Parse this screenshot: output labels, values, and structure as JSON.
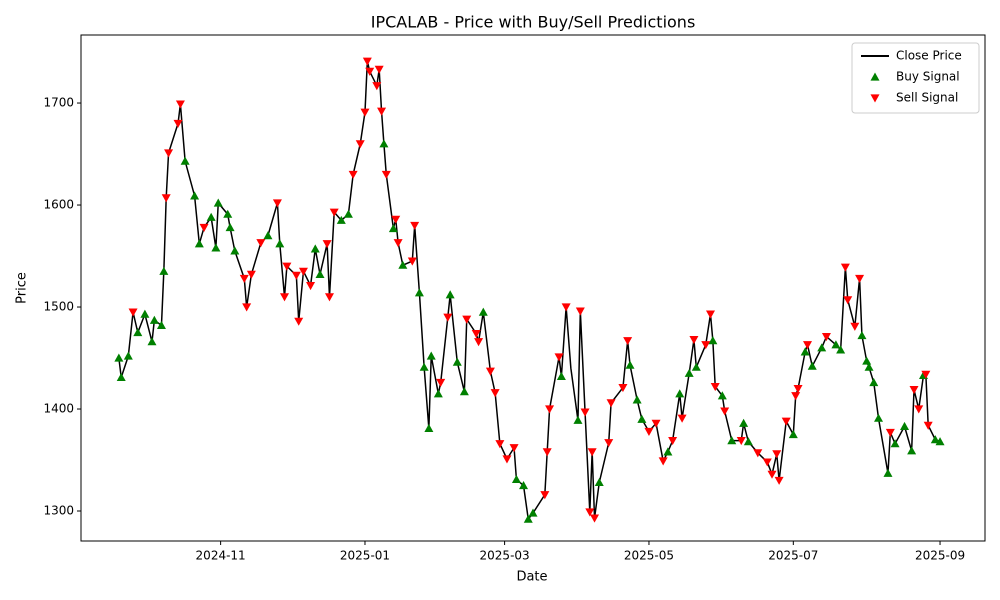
{
  "chart_data": {
    "type": "line",
    "title": "IPCALAB - Price with Buy/Sell Predictions",
    "x_label": "Date",
    "y_label": "Price",
    "xlim": [
      "2024-09-03",
      "2025-09-20"
    ],
    "xticks": [
      {
        "value": "2024-11-01",
        "label": "2024-11"
      },
      {
        "value": "2025-01-01",
        "label": "2025-01"
      },
      {
        "value": "2025-03-01",
        "label": "2025-03"
      },
      {
        "value": "2025-05-01",
        "label": "2025-05"
      },
      {
        "value": "2025-07-01",
        "label": "2025-07"
      },
      {
        "value": "2025-09-01",
        "label": "2025-09"
      }
    ],
    "ylim": [
      1270.6,
      1766.7
    ],
    "yticks": [
      1300,
      1400,
      1500,
      1600,
      1700
    ],
    "legend": "upper right",
    "x": [
      "2024-09-19",
      "2024-09-20",
      "2024-09-23",
      "2024-09-25",
      "2024-09-27",
      "2024-09-30",
      "2024-10-03",
      "2024-10-04",
      "2024-10-07",
      "2024-10-08",
      "2024-10-09",
      "2024-10-10",
      "2024-10-14",
      "2024-10-15",
      "2024-10-17",
      "2024-10-21",
      "2024-10-23",
      "2024-10-25",
      "2024-10-28",
      "2024-10-30",
      "2024-10-31",
      "2024-11-04",
      "2024-11-05",
      "2024-11-07",
      "2024-11-11",
      "2024-11-12",
      "2024-11-14",
      "2024-11-18",
      "2024-11-21",
      "2024-11-25",
      "2024-11-26",
      "2024-11-28",
      "2024-11-29",
      "2024-12-03",
      "2024-12-04",
      "2024-12-06",
      "2024-12-09",
      "2024-12-11",
      "2024-12-13",
      "2024-12-16",
      "2024-12-17",
      "2024-12-19",
      "2024-12-22",
      "2024-12-25",
      "2024-12-27",
      "2024-12-30",
      "2025-01-01",
      "2025-01-02",
      "2025-01-03",
      "2025-01-06",
      "2025-01-07",
      "2025-01-08",
      "2025-01-09",
      "2025-01-10",
      "2025-01-13",
      "2025-01-14",
      "2025-01-15",
      "2025-01-17",
      "2025-01-21",
      "2025-01-22",
      "2025-01-24",
      "2025-01-26",
      "2025-01-28",
      "2025-01-29",
      "2025-02-01",
      "2025-02-02",
      "2025-02-05",
      "2025-02-06",
      "2025-02-09",
      "2025-02-12",
      "2025-02-13",
      "2025-02-17",
      "2025-02-18",
      "2025-02-20",
      "2025-02-23",
      "2025-02-25",
      "2025-02-27",
      "2025-03-02",
      "2025-03-05",
      "2025-03-06",
      "2025-03-09",
      "2025-03-11",
      "2025-03-13",
      "2025-03-18",
      "2025-03-19",
      "2025-03-20",
      "2025-03-24",
      "2025-03-25",
      "2025-03-27",
      "2025-03-29",
      "2025-04-01",
      "2025-04-02",
      "2025-04-04",
      "2025-04-06",
      "2025-04-07",
      "2025-04-08",
      "2025-04-10",
      "2025-04-14",
      "2025-04-15",
      "2025-04-20",
      "2025-04-22",
      "2025-04-23",
      "2025-04-26",
      "2025-04-28",
      "2025-05-01",
      "2025-05-04",
      "2025-05-07",
      "2025-05-09",
      "2025-05-11",
      "2025-05-14",
      "2025-05-15",
      "2025-05-18",
      "2025-05-20",
      "2025-05-21",
      "2025-05-25",
      "2025-05-27",
      "2025-05-28",
      "2025-05-29",
      "2025-06-01",
      "2025-06-02",
      "2025-06-05",
      "2025-06-09",
      "2025-06-10",
      "2025-06-12",
      "2025-06-16",
      "2025-06-20",
      "2025-06-22",
      "2025-06-24",
      "2025-06-25",
      "2025-06-28",
      "2025-07-01",
      "2025-07-02",
      "2025-07-03",
      "2025-07-06",
      "2025-07-07",
      "2025-07-09",
      "2025-07-13",
      "2025-07-15",
      "2025-07-19",
      "2025-07-21",
      "2025-07-23",
      "2025-07-24",
      "2025-07-27",
      "2025-07-29",
      "2025-07-30",
      "2025-08-01",
      "2025-08-02",
      "2025-08-04",
      "2025-08-06",
      "2025-08-10",
      "2025-08-11",
      "2025-08-13",
      "2025-08-17",
      "2025-08-20",
      "2025-08-21",
      "2025-08-23",
      "2025-08-25",
      "2025-08-26",
      "2025-08-27",
      "2025-08-30",
      "2025-09-01"
    ],
    "series": [
      {
        "name": "Close Price",
        "type": "line",
        "color": "#000000",
        "values": [
          1450,
          1431,
          1452,
          1495,
          1475,
          1493,
          1466,
          1487,
          1482,
          1535,
          1607,
          1651,
          1680,
          1699,
          1643,
          1609,
          1562,
          1578,
          1588,
          1558,
          1602,
          1591,
          1578,
          1555,
          1528,
          1500,
          1532,
          1563,
          1570,
          1602,
          1562,
          1510,
          1540,
          1531,
          1486,
          1535,
          1521,
          1557,
          1532,
          1562,
          1510,
          1593,
          1585,
          1591,
          1630,
          1660,
          1691,
          1741,
          1731,
          1717,
          1733,
          1692,
          1660,
          1630,
          1577,
          1586,
          1563,
          1541,
          1545,
          1580,
          1514,
          1441,
          1381,
          1452,
          1415,
          1426,
          1490,
          1512,
          1446,
          1417,
          1488,
          1474,
          1466,
          1495,
          1437,
          1416,
          1366,
          1351,
          1362,
          1331,
          1325,
          1292,
          1298,
          1316,
          1358,
          1400,
          1451,
          1432,
          1500,
          1440,
          1389,
          1496,
          1397,
          1299,
          1358,
          1293,
          1328,
          1367,
          1406,
          1421,
          1467,
          1443,
          1409,
          1390,
          1378,
          1386,
          1349,
          1358,
          1369,
          1415,
          1391,
          1435,
          1468,
          1441,
          1463,
          1493,
          1467,
          1422,
          1413,
          1398,
          1369,
          1369,
          1386,
          1368,
          1357,
          1348,
          1336,
          1356,
          1330,
          1388,
          1375,
          1413,
          1420,
          1456,
          1463,
          1442,
          1460,
          1471,
          1463,
          1458,
          1539,
          1507,
          1481,
          1528,
          1472,
          1447,
          1441,
          1426,
          1391,
          1337,
          1377,
          1366,
          1383,
          1359,
          1419,
          1400,
          1433,
          1434,
          1384,
          1370,
          1368
        ]
      },
      {
        "name": "Buy Signal",
        "type": "scatter",
        "marker": "triangle-up",
        "color": "#008000",
        "x": [
          "2024-09-19",
          "2024-09-20",
          "2024-09-23",
          "2024-09-27",
          "2024-09-30",
          "2024-10-03",
          "2024-10-04",
          "2024-10-07",
          "2024-10-08",
          "2024-10-17",
          "2024-10-21",
          "2024-10-23",
          "2024-10-28",
          "2024-10-30",
          "2024-10-31",
          "2024-11-04",
          "2024-11-05",
          "2024-11-07",
          "2024-11-21",
          "2024-11-26",
          "2024-12-11",
          "2024-12-13",
          "2024-12-22",
          "2024-12-25",
          "2025-01-09",
          "2025-01-13",
          "2025-01-17",
          "2025-01-24",
          "2025-01-26",
          "2025-01-28",
          "2025-01-29",
          "2025-02-01",
          "2025-02-06",
          "2025-02-09",
          "2025-02-12",
          "2025-02-20",
          "2025-03-06",
          "2025-03-09",
          "2025-03-11",
          "2025-03-13",
          "2025-03-25",
          "2025-04-01",
          "2025-04-10",
          "2025-04-23",
          "2025-04-26",
          "2025-04-28",
          "2025-05-09",
          "2025-05-14",
          "2025-05-18",
          "2025-05-21",
          "2025-05-28",
          "2025-06-01",
          "2025-06-05",
          "2025-06-10",
          "2025-06-12",
          "2025-07-01",
          "2025-07-06",
          "2025-07-09",
          "2025-07-13",
          "2025-07-19",
          "2025-07-21",
          "2025-07-30",
          "2025-08-01",
          "2025-08-02",
          "2025-08-04",
          "2025-08-06",
          "2025-08-10",
          "2025-08-13",
          "2025-08-17",
          "2025-08-20",
          "2025-08-25",
          "2025-08-30",
          "2025-09-01"
        ],
        "values": [
          1450,
          1431,
          1452,
          1475,
          1493,
          1466,
          1487,
          1482,
          1535,
          1643,
          1609,
          1562,
          1588,
          1558,
          1602,
          1591,
          1578,
          1555,
          1570,
          1562,
          1557,
          1532,
          1585,
          1591,
          1660,
          1577,
          1541,
          1514,
          1441,
          1381,
          1452,
          1415,
          1512,
          1446,
          1417,
          1495,
          1331,
          1325,
          1292,
          1298,
          1432,
          1389,
          1328,
          1443,
          1409,
          1390,
          1358,
          1415,
          1435,
          1441,
          1467,
          1413,
          1369,
          1386,
          1368,
          1375,
          1456,
          1442,
          1460,
          1463,
          1458,
          1472,
          1447,
          1441,
          1426,
          1391,
          1337,
          1366,
          1383,
          1359,
          1433,
          1370,
          1368
        ]
      },
      {
        "name": "Sell Signal",
        "type": "scatter",
        "marker": "triangle-down",
        "color": "#ff0000",
        "x": [
          "2024-09-25",
          "2024-10-09",
          "2024-10-10",
          "2024-10-14",
          "2024-10-15",
          "2024-10-25",
          "2024-11-11",
          "2024-11-12",
          "2024-11-14",
          "2024-11-18",
          "2024-11-25",
          "2024-11-28",
          "2024-11-29",
          "2024-12-03",
          "2024-12-04",
          "2024-12-06",
          "2024-12-09",
          "2024-12-16",
          "2024-12-17",
          "2024-12-19",
          "2024-12-27",
          "2024-12-30",
          "2025-01-01",
          "2025-01-02",
          "2025-01-03",
          "2025-01-06",
          "2025-01-07",
          "2025-01-08",
          "2025-01-10",
          "2025-01-14",
          "2025-01-15",
          "2025-01-21",
          "2025-01-22",
          "2025-02-02",
          "2025-02-05",
          "2025-02-13",
          "2025-02-17",
          "2025-02-18",
          "2025-02-23",
          "2025-02-25",
          "2025-02-27",
          "2025-03-02",
          "2025-03-05",
          "2025-03-18",
          "2025-03-19",
          "2025-03-20",
          "2025-03-24",
          "2025-03-27",
          "2025-04-02",
          "2025-04-04",
          "2025-04-06",
          "2025-04-07",
          "2025-04-08",
          "2025-04-14",
          "2025-04-15",
          "2025-04-20",
          "2025-04-22",
          "2025-05-01",
          "2025-05-04",
          "2025-05-07",
          "2025-05-11",
          "2025-05-15",
          "2025-05-20",
          "2025-05-25",
          "2025-05-27",
          "2025-05-29",
          "2025-06-02",
          "2025-06-09",
          "2025-06-16",
          "2025-06-20",
          "2025-06-22",
          "2025-06-24",
          "2025-06-25",
          "2025-06-28",
          "2025-07-02",
          "2025-07-03",
          "2025-07-07",
          "2025-07-15",
          "2025-07-23",
          "2025-07-24",
          "2025-07-27",
          "2025-07-29",
          "2025-08-11",
          "2025-08-21",
          "2025-08-23",
          "2025-08-26",
          "2025-08-27"
        ],
        "values": [
          1495,
          1607,
          1651,
          1680,
          1699,
          1578,
          1528,
          1500,
          1532,
          1563,
          1602,
          1510,
          1540,
          1531,
          1486,
          1535,
          1521,
          1562,
          1510,
          1593,
          1630,
          1660,
          1691,
          1741,
          1731,
          1717,
          1733,
          1692,
          1630,
          1586,
          1563,
          1545,
          1580,
          1426,
          1490,
          1488,
          1474,
          1466,
          1437,
          1416,
          1366,
          1351,
          1362,
          1316,
          1358,
          1400,
          1451,
          1500,
          1496,
          1397,
          1299,
          1358,
          1293,
          1367,
          1406,
          1421,
          1467,
          1378,
          1386,
          1349,
          1369,
          1391,
          1468,
          1463,
          1493,
          1422,
          1398,
          1369,
          1357,
          1348,
          1336,
          1356,
          1330,
          1388,
          1413,
          1420,
          1463,
          1471,
          1539,
          1507,
          1481,
          1528,
          1377,
          1419,
          1400,
          1434,
          1384
        ]
      }
    ]
  }
}
